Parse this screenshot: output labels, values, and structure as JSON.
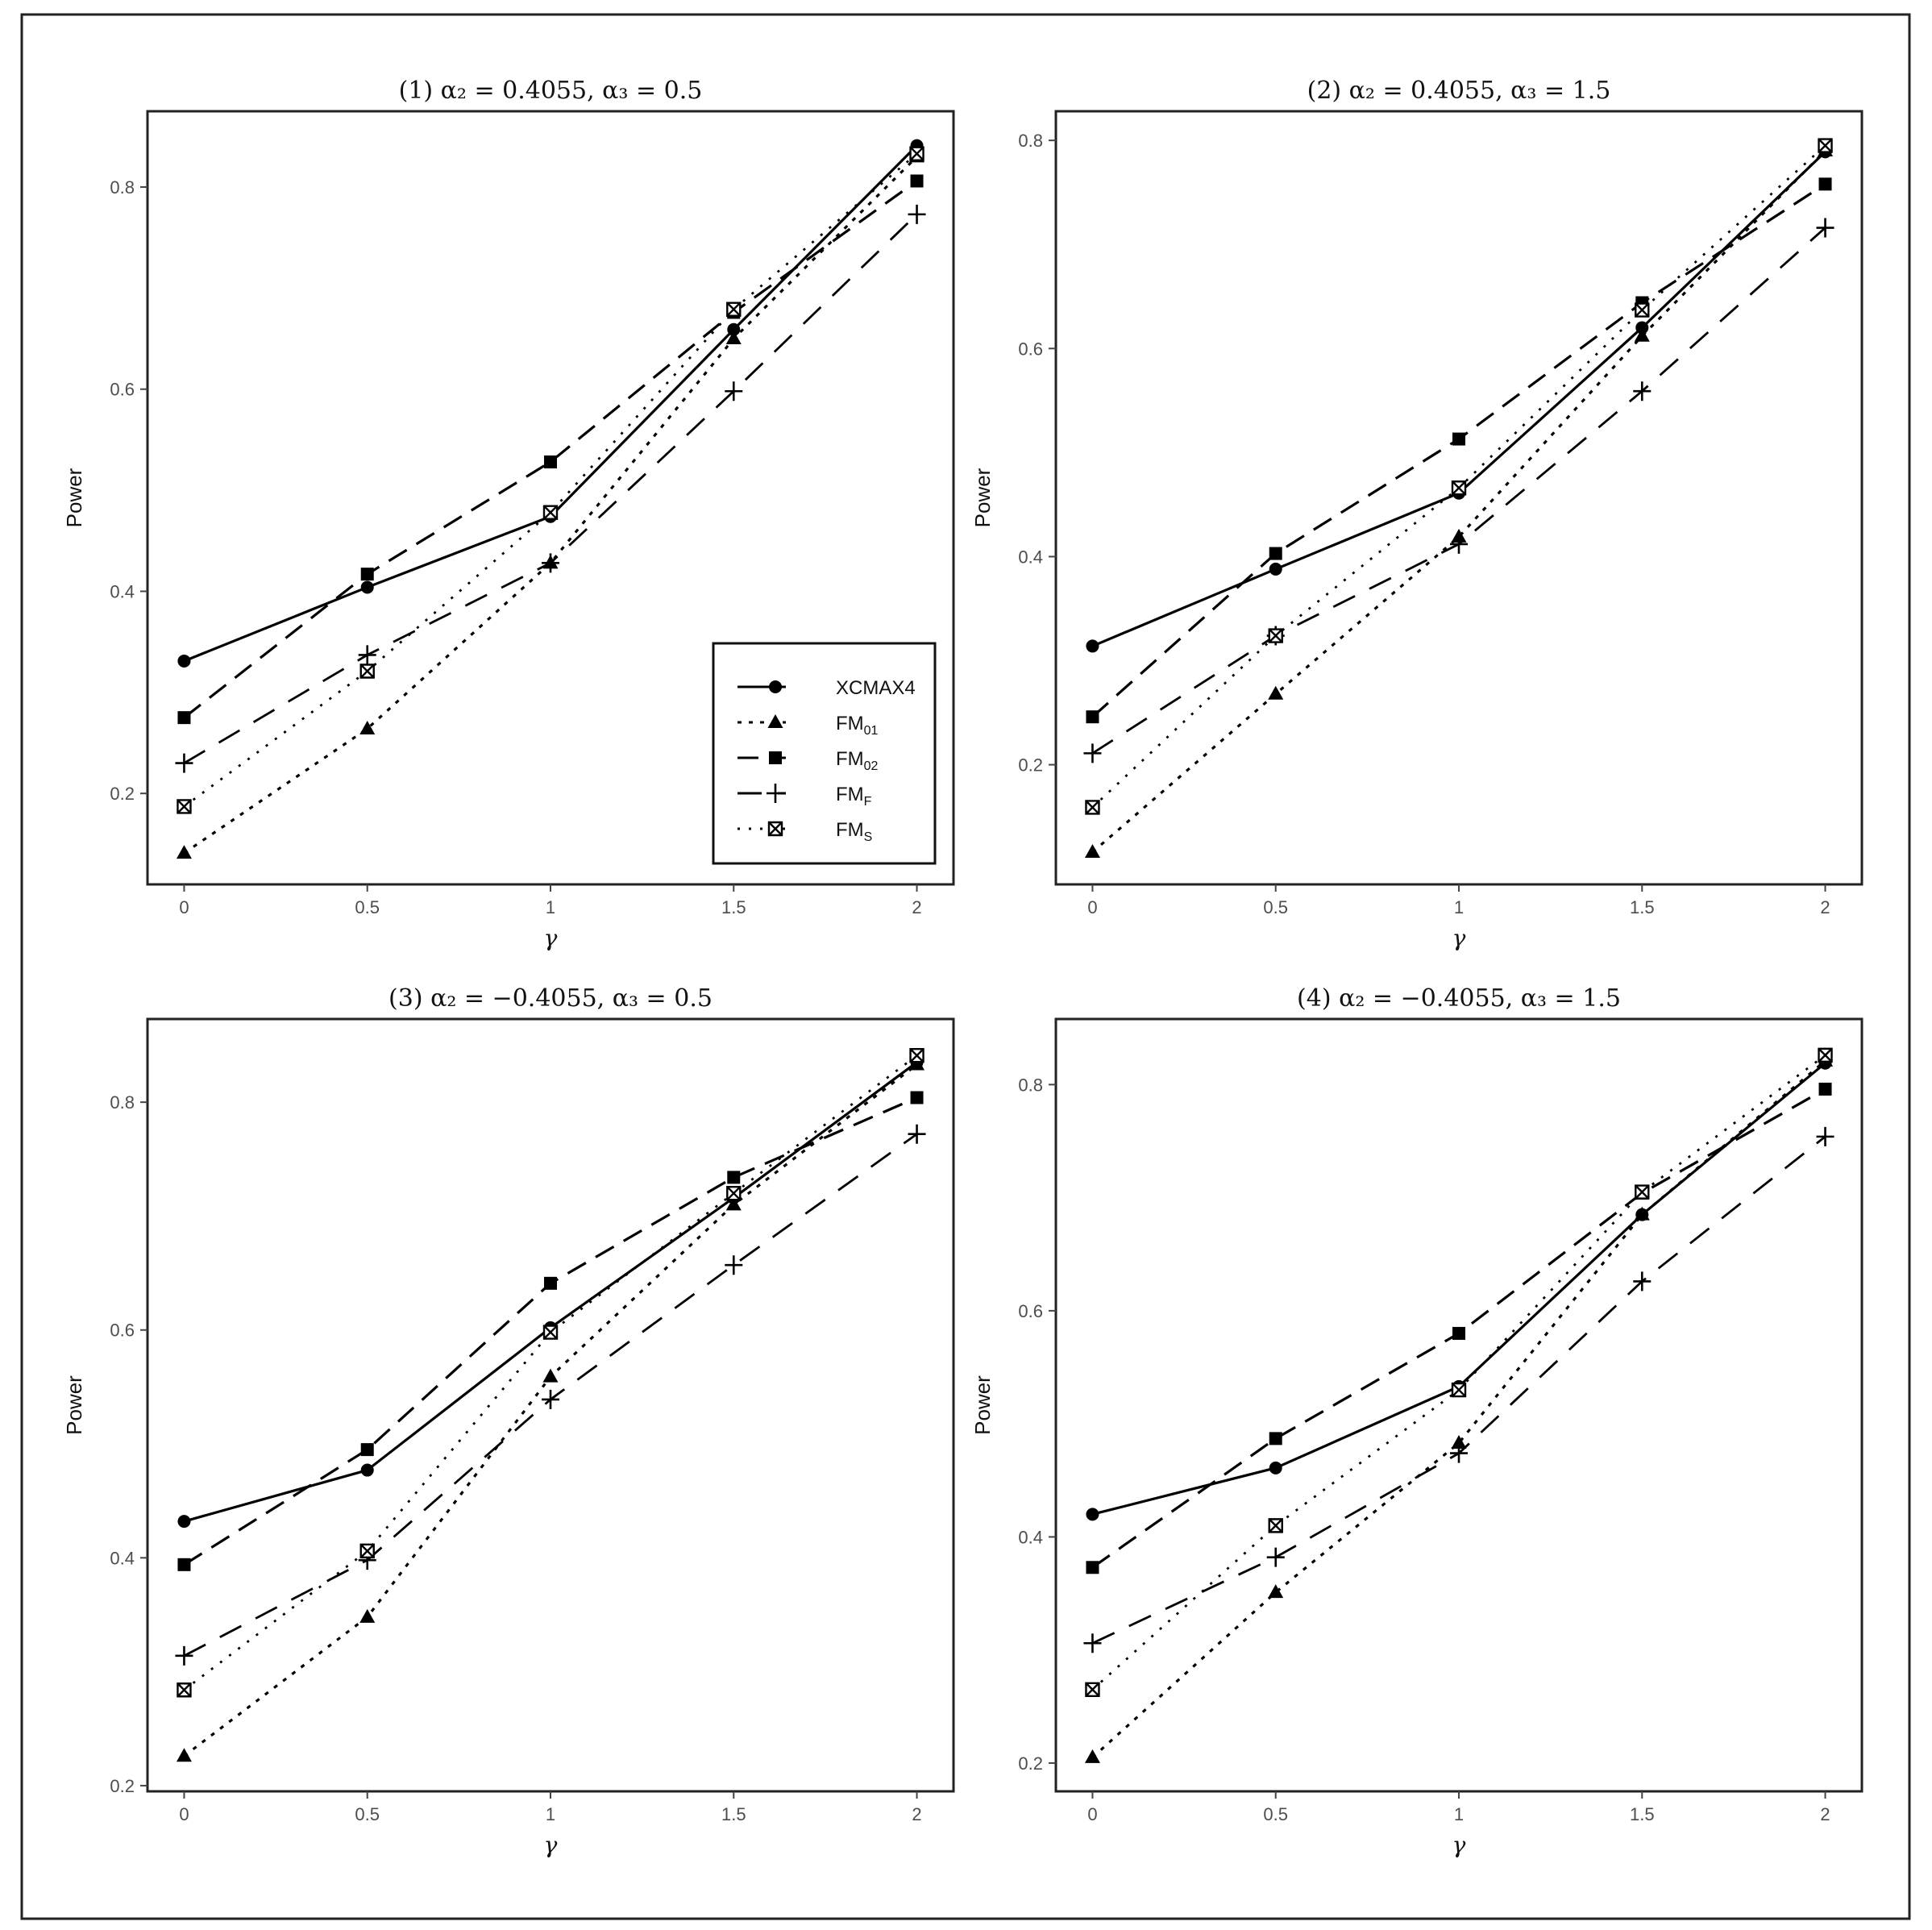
{
  "chart_data": [
    {
      "type": "line",
      "title": "(1) α₂ = 0.4055, α₃ = 0.5",
      "xlabel": "γ",
      "ylabel": "Power",
      "x": [
        0,
        0.5,
        1,
        1.5,
        2
      ],
      "x_tick_labels": [
        "0",
        "0.5",
        "1",
        "1.5",
        "2"
      ],
      "y_ticks": [
        0.2,
        0.4,
        0.6,
        0.8
      ],
      "y_tick_labels": [
        "0.2",
        "0.4",
        "0.6",
        "0.8"
      ],
      "ylim": [
        0.11,
        0.875
      ],
      "legend_placement": "bottom-right",
      "series": [
        {
          "name": "XCMAX4",
          "values": [
            0.331,
            0.404,
            0.474,
            0.659,
            0.841
          ]
        },
        {
          "name": "FM01",
          "values": [
            0.141,
            0.264,
            0.428,
            0.65,
            0.83
          ]
        },
        {
          "name": "FM02",
          "values": [
            0.275,
            0.417,
            0.528,
            0.676,
            0.806
          ]
        },
        {
          "name": "FMF",
          "values": [
            0.23,
            0.337,
            0.428,
            0.598,
            0.773
          ]
        },
        {
          "name": "FMS",
          "values": [
            0.187,
            0.321,
            0.478,
            0.679,
            0.833
          ]
        }
      ]
    },
    {
      "type": "line",
      "title": "(2) α₂ = 0.4055, α₃ = 1.5",
      "xlabel": "γ",
      "ylabel": "Power",
      "x": [
        0,
        0.5,
        1,
        1.5,
        2
      ],
      "x_tick_labels": [
        "0",
        "0.5",
        "1",
        "1.5",
        "2"
      ],
      "y_ticks": [
        0.2,
        0.4,
        0.6,
        0.8
      ],
      "y_tick_labels": [
        "0.2",
        "0.4",
        "0.6",
        "0.8"
      ],
      "ylim": [
        0.085,
        0.828
      ],
      "series": [
        {
          "name": "XCMAX4",
          "values": [
            0.314,
            0.388,
            0.461,
            0.62,
            0.789
          ]
        },
        {
          "name": "FM01",
          "values": [
            0.116,
            0.268,
            0.419,
            0.612,
            0.79
          ]
        },
        {
          "name": "FM02",
          "values": [
            0.246,
            0.403,
            0.513,
            0.644,
            0.758
          ]
        },
        {
          "name": "FMF",
          "values": [
            0.211,
            0.324,
            0.412,
            0.559,
            0.716
          ]
        },
        {
          "name": "FMS",
          "values": [
            0.159,
            0.324,
            0.466,
            0.637,
            0.795
          ]
        }
      ]
    },
    {
      "type": "line",
      "title": "(3) α₂ = −0.4055, α₃ = 0.5",
      "xlabel": "γ",
      "ylabel": "Power",
      "x": [
        0,
        0.5,
        1,
        1.5,
        2
      ],
      "x_tick_labels": [
        "0",
        "0.5",
        "1",
        "1.5",
        "2"
      ],
      "y_ticks": [
        0.2,
        0.4,
        0.6,
        0.8
      ],
      "y_tick_labels": [
        "0.2",
        "0.4",
        "0.6",
        "0.8"
      ],
      "ylim": [
        0.195,
        0.873
      ],
      "series": [
        {
          "name": "XCMAX4",
          "values": [
            0.432,
            0.477,
            0.602,
            0.716,
            0.835
          ]
        },
        {
          "name": "FM01",
          "values": [
            0.226,
            0.348,
            0.559,
            0.71,
            0.833
          ]
        },
        {
          "name": "FM02",
          "values": [
            0.394,
            0.495,
            0.641,
            0.734,
            0.804
          ]
        },
        {
          "name": "FMF",
          "values": [
            0.314,
            0.398,
            0.539,
            0.657,
            0.772
          ]
        },
        {
          "name": "FMS",
          "values": [
            0.284,
            0.406,
            0.598,
            0.72,
            0.841
          ]
        }
      ]
    },
    {
      "type": "line",
      "title": "(4) α₂ = −0.4055, α₃ = 1.5",
      "xlabel": "γ",
      "ylabel": "Power",
      "x": [
        0,
        0.5,
        1,
        1.5,
        2
      ],
      "x_tick_labels": [
        "0",
        "0.5",
        "1",
        "1.5",
        "2"
      ],
      "y_ticks": [
        0.2,
        0.4,
        0.6,
        0.8
      ],
      "y_tick_labels": [
        "0.2",
        "0.4",
        "0.6",
        "0.8"
      ],
      "ylim": [
        0.175,
        0.858
      ],
      "series": [
        {
          "name": "XCMAX4",
          "values": [
            0.42,
            0.461,
            0.533,
            0.685,
            0.819
          ]
        },
        {
          "name": "FM01",
          "values": [
            0.205,
            0.351,
            0.483,
            0.685,
            0.821
          ]
        },
        {
          "name": "FM02",
          "values": [
            0.373,
            0.487,
            0.58,
            0.704,
            0.796
          ]
        },
        {
          "name": "FMF",
          "values": [
            0.306,
            0.382,
            0.474,
            0.626,
            0.754
          ]
        },
        {
          "name": "FMS",
          "values": [
            0.265,
            0.41,
            0.53,
            0.705,
            0.826
          ]
        }
      ]
    }
  ],
  "legend": [
    {
      "key": "XCMAX4",
      "label": "XCMAX4",
      "base": "XCMAX4",
      "sub": ""
    },
    {
      "key": "FM01",
      "label": "FM01",
      "base": "FM",
      "sub": "01"
    },
    {
      "key": "FM02",
      "label": "FM02",
      "base": "FM",
      "sub": "02"
    },
    {
      "key": "FMF",
      "label": "FMF",
      "base": "FM",
      "sub": "F"
    },
    {
      "key": "FMS",
      "label": "FMS",
      "base": "FM",
      "sub": "S"
    }
  ],
  "series_styles": {
    "XCMAX4": {
      "dash": "none",
      "marker": "circle",
      "color": "#000000"
    },
    "FM01": {
      "dash": "dotted-short",
      "marker": "triangle",
      "color": "#000000"
    },
    "FM02": {
      "dash": "dashed",
      "marker": "square",
      "color": "#000000"
    },
    "FMF": {
      "dash": "long-dashed",
      "marker": "plus",
      "color": "#000000"
    },
    "FMS": {
      "dash": "dotted",
      "marker": "boxed-x",
      "color": "#000000"
    }
  }
}
